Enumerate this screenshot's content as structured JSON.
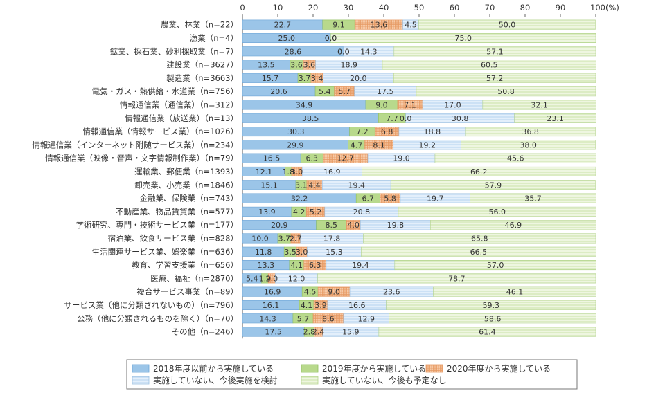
{
  "chart_data": {
    "type": "bar",
    "orientation": "horizontal",
    "stacked": true,
    "title": "",
    "xlabel": "",
    "ylabel": "",
    "xlim": [
      0,
      100
    ],
    "x_ticks": [
      "0",
      "10",
      "20",
      "30",
      "40",
      "50",
      "60",
      "70",
      "80",
      "90",
      "100(%)"
    ],
    "grid": false,
    "legend_position": "bottom",
    "categories": [
      "農業、林業（n=22）",
      "漁業（n=4）",
      "鉱業、採石業、砂利採取業（n=7）",
      "建設業（n=3627）",
      "製造業（n=3663）",
      "電気・ガス・熱供給・水道業（n=756）",
      "情報通信業（通信業）（n=312）",
      "情報通信業（放送業）（n=13）",
      "情報通信業（情報サービス業）（n=1026）",
      "情報通信業（インターネット附随サービス業）（n=234）",
      "情報通信業（映像・音声・文字情報制作業）（n=79）",
      "運輸業、郵便業（n=1393）",
      "卸売業、小売業（n=1846）",
      "金融業、保険業（n=743）",
      "不動産業、物品賃貸業（n=577）",
      "学術研究、専門・技術サービス業（n=177）",
      "宿泊業、飲食サービス業（n=828）",
      "生活関連サービス業、娯楽業（n=636）",
      "教育、学習支援業（n=656）",
      "医療、福祉（n=2870）",
      "複合サービス事業（n=89）",
      "サービス業（他に分類されないもの）（n=796）",
      "公務（他に分類されるものを除く）（n=70）",
      "その他（n=246）"
    ],
    "series": [
      {
        "name": "2018年度以前から実施している",
        "color": "#9bc5e8",
        "values": [
          22.7,
          25.0,
          28.6,
          13.5,
          15.7,
          20.6,
          34.9,
          38.5,
          30.3,
          29.9,
          16.5,
          12.1,
          15.1,
          32.2,
          13.9,
          20.9,
          10.0,
          11.8,
          13.3,
          5.4,
          16.9,
          16.1,
          14.3,
          17.5
        ]
      },
      {
        "name": "2019年度から実施している",
        "color": "#b8d98c",
        "values": [
          9.1,
          0.0,
          0.0,
          3.6,
          3.7,
          5.4,
          9.0,
          7.7,
          7.2,
          4.7,
          6.3,
          1.8,
          3.1,
          6.7,
          4.2,
          8.5,
          3.7,
          3.5,
          4.1,
          1.9,
          4.5,
          4.1,
          5.7,
          2.8
        ]
      },
      {
        "name": "2020年度から実施している",
        "color": "#f6c9a6",
        "values": [
          13.6,
          0.0,
          0.0,
          3.6,
          3.4,
          5.7,
          7.1,
          0.0,
          6.8,
          8.1,
          12.7,
          3.0,
          4.4,
          5.8,
          5.2,
          4.0,
          2.7,
          3.0,
          6.3,
          2.0,
          9.0,
          3.9,
          8.6,
          2.4
        ]
      },
      {
        "name": "実施していない、今後実施を検討",
        "color": "#dcebfa",
        "values": [
          4.5,
          0.0,
          14.3,
          18.9,
          20.0,
          17.5,
          17.0,
          30.8,
          18.8,
          19.2,
          19.0,
          16.9,
          19.4,
          19.7,
          20.8,
          19.8,
          17.8,
          15.3,
          19.4,
          12.0,
          23.6,
          16.6,
          12.9,
          15.9
        ]
      },
      {
        "name": "実施していない、今後も予定なし",
        "color": "#e6f2d1",
        "values": [
          50.0,
          75.0,
          57.1,
          60.5,
          57.2,
          50.8,
          32.1,
          23.1,
          36.8,
          38.0,
          45.6,
          66.2,
          57.9,
          35.7,
          56.0,
          46.9,
          65.8,
          66.5,
          57.0,
          78.7,
          46.1,
          59.3,
          58.6,
          61.4
        ]
      }
    ],
    "labels": [
      [
        "22.7",
        "9.1",
        "13.6",
        "4.5",
        "50.0"
      ],
      [
        "25.0",
        "0.0",
        "0.0",
        "",
        "75.0"
      ],
      [
        "28.6",
        "0.0",
        "0.0",
        "14.3",
        "57.1"
      ],
      [
        "13.5",
        "3.6",
        "3.6",
        "18.9",
        "60.5"
      ],
      [
        "15.7",
        "3.7",
        "3.4",
        "20.0",
        "57.2"
      ],
      [
        "20.6",
        "5.4",
        "5.7",
        "17.5",
        "50.8"
      ],
      [
        "34.9",
        "9.0",
        "7.1",
        "17.0",
        "32.1"
      ],
      [
        "38.5",
        "7.7",
        "0.0",
        "30.8",
        "23.1"
      ],
      [
        "30.3",
        "7.2",
        "6.8",
        "18.8",
        "36.8"
      ],
      [
        "29.9",
        "4.7",
        "8.1",
        "19.2",
        "38.0"
      ],
      [
        "16.5",
        "6.3",
        "12.7",
        "19.0",
        "45.6"
      ],
      [
        "12.1",
        "1.8",
        "3.0",
        "16.9",
        "66.2"
      ],
      [
        "15.1",
        "3.1",
        "4.4",
        "19.4",
        "57.9"
      ],
      [
        "32.2",
        "6.7",
        "5.8",
        "19.7",
        "35.7"
      ],
      [
        "13.9",
        "4.2",
        "5.2",
        "20.8",
        "56.0"
      ],
      [
        "20.9",
        "8.5",
        "4.0",
        "19.8",
        "46.9"
      ],
      [
        "10.0",
        "3.7",
        "2.7",
        "17.8",
        "65.8"
      ],
      [
        "11.8",
        "3.5",
        "3.0",
        "15.3",
        "66.5"
      ],
      [
        "13.3",
        "4.1",
        "6.3",
        "19.4",
        "57.0"
      ],
      [
        "5.4",
        "1.9",
        "2.0",
        "12.0",
        "78.7"
      ],
      [
        "16.9",
        "4.5",
        "9.0",
        "23.6",
        "46.1"
      ],
      [
        "16.1",
        "4.1",
        "3.9",
        "16.6",
        "59.3"
      ],
      [
        "14.3",
        "5.7",
        "8.6",
        "12.9",
        "58.6"
      ],
      [
        "17.5",
        "2.8",
        "2.4",
        "15.9",
        "61.4"
      ]
    ]
  }
}
